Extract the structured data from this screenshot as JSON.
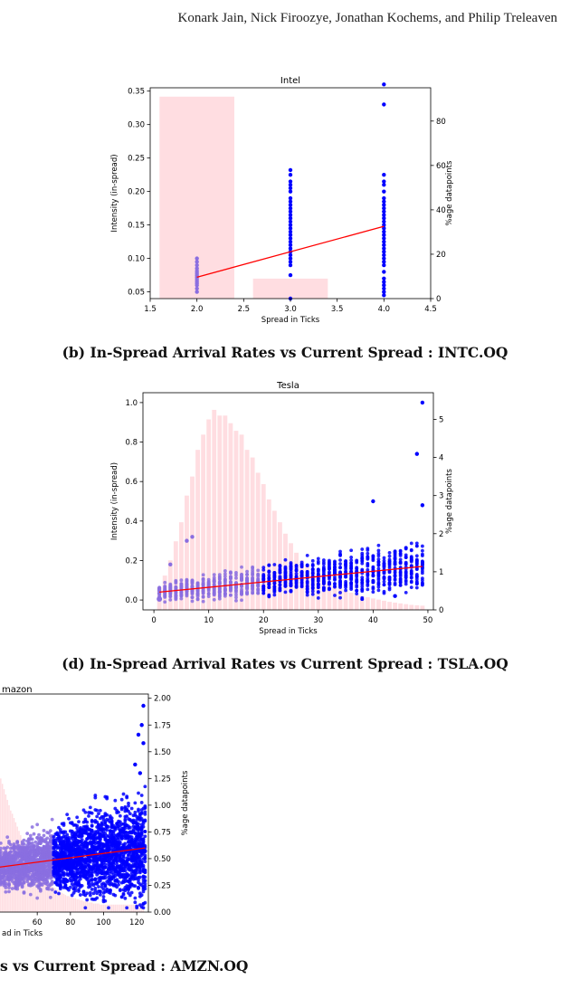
{
  "header": {
    "authors": "Konark Jain, Nick Firoozye, Jonathan Kochems, and Philip Treleaven"
  },
  "captions": {
    "b": "(b) In-Spread Arrival Rates vs Current Spread : INTC.OQ",
    "d": "(d) In-Spread Arrival Rates vs Current Spread : TSLA.OQ",
    "f_partial": "s vs Current Spread : AMZN.OQ"
  },
  "colors": {
    "bars": "#ffdde1",
    "points": "#0000ff",
    "faint_points": "#8a6ee0",
    "fit": "#ff0000"
  },
  "chart_data": [
    {
      "id": "intel",
      "type": "scatter",
      "title": "Intel",
      "xlabel": "Spread in Ticks",
      "ylabel": "Intensity (in-spread)",
      "y2label": "%age datapoints",
      "xlim": [
        1.5,
        4.5
      ],
      "ylim": [
        0.04,
        0.355
      ],
      "y2lim": [
        0,
        95
      ],
      "xticks": [
        "1.5",
        "2.0",
        "2.5",
        "3.0",
        "3.5",
        "4.0",
        "4.5"
      ],
      "yticks": [
        "0.05",
        "0.10",
        "0.15",
        "0.20",
        "0.25",
        "0.30",
        "0.35"
      ],
      "y2ticks": [
        "0",
        "20",
        "40",
        "60",
        "80"
      ],
      "bars": [
        {
          "x": 2,
          "pct": 91
        },
        {
          "x": 3,
          "pct": 9
        }
      ],
      "points": [
        {
          "x": 2,
          "y": 0.05
        },
        {
          "x": 2,
          "y": 0.055
        },
        {
          "x": 2,
          "y": 0.06
        },
        {
          "x": 2,
          "y": 0.063
        },
        {
          "x": 2,
          "y": 0.066
        },
        {
          "x": 2,
          "y": 0.069
        },
        {
          "x": 2,
          "y": 0.072
        },
        {
          "x": 2,
          "y": 0.075
        },
        {
          "x": 2,
          "y": 0.078
        },
        {
          "x": 2,
          "y": 0.081
        },
        {
          "x": 2,
          "y": 0.085
        },
        {
          "x": 2,
          "y": 0.09
        },
        {
          "x": 2,
          "y": 0.095
        },
        {
          "x": 2,
          "y": 0.1
        },
        {
          "x": 3,
          "y": 0.04
        },
        {
          "x": 3,
          "y": 0.075
        },
        {
          "x": 3,
          "y": 0.09
        },
        {
          "x": 3,
          "y": 0.095
        },
        {
          "x": 3,
          "y": 0.1
        },
        {
          "x": 3,
          "y": 0.105
        },
        {
          "x": 3,
          "y": 0.11
        },
        {
          "x": 3,
          "y": 0.115
        },
        {
          "x": 3,
          "y": 0.12
        },
        {
          "x": 3,
          "y": 0.125
        },
        {
          "x": 3,
          "y": 0.13
        },
        {
          "x": 3,
          "y": 0.135
        },
        {
          "x": 3,
          "y": 0.14
        },
        {
          "x": 3,
          "y": 0.145
        },
        {
          "x": 3,
          "y": 0.15
        },
        {
          "x": 3,
          "y": 0.155
        },
        {
          "x": 3,
          "y": 0.16
        },
        {
          "x": 3,
          "y": 0.165
        },
        {
          "x": 3,
          "y": 0.17
        },
        {
          "x": 3,
          "y": 0.175
        },
        {
          "x": 3,
          "y": 0.18
        },
        {
          "x": 3,
          "y": 0.185
        },
        {
          "x": 3,
          "y": 0.19
        },
        {
          "x": 3,
          "y": 0.2
        },
        {
          "x": 3,
          "y": 0.205
        },
        {
          "x": 3,
          "y": 0.21
        },
        {
          "x": 3,
          "y": 0.215
        },
        {
          "x": 3,
          "y": 0.225
        },
        {
          "x": 3,
          "y": 0.232
        },
        {
          "x": 4,
          "y": 0.045
        },
        {
          "x": 4,
          "y": 0.05
        },
        {
          "x": 4,
          "y": 0.055
        },
        {
          "x": 4,
          "y": 0.06
        },
        {
          "x": 4,
          "y": 0.065
        },
        {
          "x": 4,
          "y": 0.07
        },
        {
          "x": 4,
          "y": 0.08
        },
        {
          "x": 4,
          "y": 0.09
        },
        {
          "x": 4,
          "y": 0.095
        },
        {
          "x": 4,
          "y": 0.1
        },
        {
          "x": 4,
          "y": 0.105
        },
        {
          "x": 4,
          "y": 0.11
        },
        {
          "x": 4,
          "y": 0.115
        },
        {
          "x": 4,
          "y": 0.12
        },
        {
          "x": 4,
          "y": 0.125
        },
        {
          "x": 4,
          "y": 0.13
        },
        {
          "x": 4,
          "y": 0.135
        },
        {
          "x": 4,
          "y": 0.14
        },
        {
          "x": 4,
          "y": 0.145
        },
        {
          "x": 4,
          "y": 0.15
        },
        {
          "x": 4,
          "y": 0.155
        },
        {
          "x": 4,
          "y": 0.16
        },
        {
          "x": 4,
          "y": 0.165
        },
        {
          "x": 4,
          "y": 0.17
        },
        {
          "x": 4,
          "y": 0.175
        },
        {
          "x": 4,
          "y": 0.18
        },
        {
          "x": 4,
          "y": 0.185
        },
        {
          "x": 4,
          "y": 0.19
        },
        {
          "x": 4,
          "y": 0.2
        },
        {
          "x": 4,
          "y": 0.21
        },
        {
          "x": 4,
          "y": 0.215
        },
        {
          "x": 4,
          "y": 0.225
        },
        {
          "x": 4,
          "y": 0.33
        },
        {
          "x": 4,
          "y": 0.36
        }
      ],
      "fit": [
        {
          "x": 2,
          "y": 0.072
        },
        {
          "x": 4,
          "y": 0.148
        }
      ]
    },
    {
      "id": "tesla",
      "type": "scatter",
      "title": "Tesla",
      "xlabel": "Spread in Ticks",
      "ylabel": "Intensity (in-spread)",
      "y2label": "%age datapoints",
      "xlim": [
        -2,
        51
      ],
      "ylim": [
        -0.05,
        1.05
      ],
      "y2lim": [
        0,
        5.7
      ],
      "xticks": [
        "0",
        "10",
        "20",
        "30",
        "40",
        "50"
      ],
      "yticks": [
        "0.0",
        "0.2",
        "0.4",
        "0.6",
        "0.8",
        "1.0"
      ],
      "y2ticks": [
        "0",
        "1",
        "2",
        "3",
        "4",
        "5"
      ],
      "bar_pct": [
        0.6,
        0.9,
        1.3,
        1.8,
        2.3,
        3.0,
        3.5,
        4.2,
        4.6,
        5.0,
        5.25,
        5.1,
        5.1,
        4.9,
        4.7,
        4.6,
        4.2,
        4.0,
        3.6,
        3.3,
        2.9,
        2.6,
        2.3,
        2.0,
        1.75,
        1.5,
        1.3,
        1.15,
        1.0,
        0.9,
        0.8,
        0.7,
        0.62,
        0.55,
        0.5,
        0.45,
        0.4,
        0.36,
        0.33,
        0.3,
        0.27,
        0.24,
        0.21,
        0.19,
        0.17,
        0.15,
        0.13,
        0.12,
        0.11
      ],
      "outliers": [
        {
          "x": 3,
          "y": 0.18
        },
        {
          "x": 6,
          "y": 0.3
        },
        {
          "x": 7,
          "y": 0.32
        },
        {
          "x": 40,
          "y": 0.5
        },
        {
          "x": 44,
          "y": 0.02
        },
        {
          "x": 48,
          "y": 0.74
        },
        {
          "x": 49,
          "y": 0.48
        },
        {
          "x": 49,
          "y": 1.0
        },
        {
          "x": 1,
          "y": 0.005
        }
      ],
      "fit": [
        {
          "x": 1,
          "y": 0.04
        },
        {
          "x": 49,
          "y": 0.17
        }
      ]
    },
    {
      "id": "amazon",
      "type": "scatter",
      "title": "mazon",
      "xlabel": "ad in Ticks",
      "y2label": "%age datapoints",
      "xlim": [
        37,
        127
      ],
      "y2lim": [
        0,
        2.04
      ],
      "xticks": [
        "60",
        "80",
        "100",
        "120"
      ],
      "y2ticks": [
        "0.00",
        "0.25",
        "0.50",
        "0.75",
        "1.00",
        "1.25",
        "1.50",
        "1.75",
        "2.00"
      ],
      "bar_pct_start_x": 37,
      "bar_pct": [
        1.3,
        1.25,
        1.2,
        1.15,
        1.1,
        1.05,
        1.0,
        0.95,
        0.92,
        0.88,
        0.84,
        0.8,
        0.76,
        0.72,
        0.68,
        0.64,
        0.6,
        0.56,
        0.52,
        0.49,
        0.46,
        0.43,
        0.4,
        0.38,
        0.36,
        0.34,
        0.32,
        0.3,
        0.28,
        0.27,
        0.26,
        0.25,
        0.24,
        0.23,
        0.22,
        0.21,
        0.2,
        0.19,
        0.18,
        0.17,
        0.16,
        0.15,
        0.15,
        0.14,
        0.14,
        0.13,
        0.13,
        0.12,
        0.12,
        0.11,
        0.11,
        0.1,
        0.1,
        0.1,
        0.09,
        0.09,
        0.09,
        0.08,
        0.08,
        0.08,
        0.08,
        0.07,
        0.07,
        0.07,
        0.07,
        0.07,
        0.07,
        0.07,
        0.07,
        0.07,
        0.07,
        0.07,
        0.07,
        0.07,
        0.07,
        0.07,
        0.07,
        0.07,
        0.07,
        0.07,
        0.07,
        0.07,
        0.07,
        0.07,
        0.07,
        0.07,
        0.07,
        0.07
      ],
      "outliers": [
        {
          "x": 124,
          "y": 1.93
        },
        {
          "x": 123,
          "y": 1.75
        },
        {
          "x": 121,
          "y": 1.66
        },
        {
          "x": 124,
          "y": 1.58
        },
        {
          "x": 119,
          "y": 1.38
        },
        {
          "x": 122,
          "y": 1.3
        }
      ],
      "fit": [
        {
          "x": 37,
          "y": 0.42
        },
        {
          "x": 125,
          "y": 0.6
        }
      ]
    }
  ]
}
